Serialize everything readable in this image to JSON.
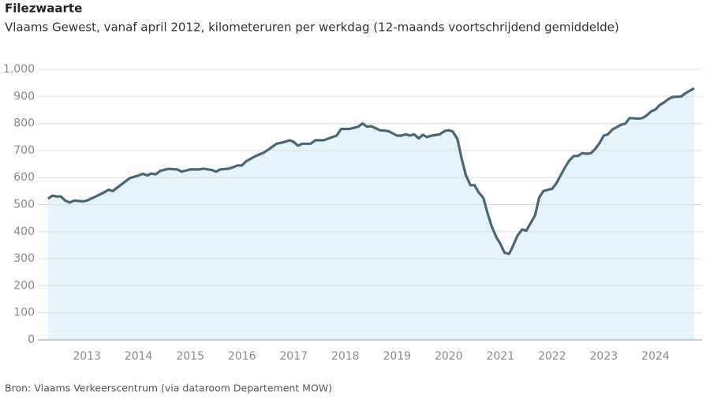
{
  "chart_data": {
    "type": "area",
    "title": "Filezwaarte",
    "subtitle": "Vlaams Gewest, vanaf april 2012, kilometeruren per werkdag (12-maands voortschrijdend gemiddelde)",
    "source": "Bron: Vlaams Verkeerscentrum (via dataroom Departement MOW)",
    "color": "#4b6672",
    "area_color": "#e5f3fb",
    "grid": true,
    "x": [
      2012.25,
      2012.33,
      2012.42,
      2012.5,
      2012.58,
      2012.67,
      2012.75,
      2012.92,
      2013.0,
      2013.17,
      2013.33,
      2013.42,
      2013.5,
      2013.67,
      2013.83,
      2014.0,
      2014.08,
      2014.17,
      2014.25,
      2014.33,
      2014.42,
      2014.58,
      2014.75,
      2014.83,
      2015.0,
      2015.17,
      2015.25,
      2015.42,
      2015.5,
      2015.58,
      2015.75,
      2015.92,
      2016.0,
      2016.08,
      2016.25,
      2016.42,
      2016.5,
      2016.67,
      2016.83,
      2016.92,
      2017.0,
      2017.08,
      2017.17,
      2017.33,
      2017.42,
      2017.58,
      2017.83,
      2017.92,
      2018.08,
      2018.25,
      2018.33,
      2018.42,
      2018.5,
      2018.67,
      2018.83,
      2019.0,
      2019.08,
      2019.17,
      2019.25,
      2019.33,
      2019.42,
      2019.5,
      2019.58,
      2019.67,
      2019.83,
      2019.92,
      2020.0,
      2020.08,
      2020.17,
      2020.25,
      2020.33,
      2020.42,
      2020.5,
      2020.58,
      2020.67,
      2020.75,
      2020.83,
      2020.92,
      2021.0,
      2021.08,
      2021.17,
      2021.25,
      2021.33,
      2021.42,
      2021.5,
      2021.58,
      2021.67,
      2021.75,
      2021.83,
      2021.92,
      2022.0,
      2022.08,
      2022.17,
      2022.25,
      2022.33,
      2022.42,
      2022.5,
      2022.58,
      2022.67,
      2022.75,
      2022.83,
      2022.92,
      2023.0,
      2023.08,
      2023.17,
      2023.33,
      2023.42,
      2023.5,
      2023.67,
      2023.75,
      2023.83,
      2023.92,
      2024.0,
      2024.08,
      2024.17,
      2024.25,
      2024.33,
      2024.5,
      2024.58,
      2024.67,
      2024.75
    ],
    "values": [
      522,
      533,
      530,
      530,
      515,
      508,
      515,
      512,
      515,
      530,
      545,
      555,
      550,
      575,
      598,
      608,
      614,
      608,
      615,
      612,
      625,
      632,
      630,
      622,
      630,
      630,
      633,
      628,
      622,
      630,
      633,
      645,
      645,
      660,
      678,
      692,
      702,
      725,
      732,
      738,
      732,
      718,
      725,
      725,
      738,
      738,
      755,
      780,
      780,
      788,
      800,
      788,
      790,
      775,
      772,
      755,
      755,
      760,
      755,
      760,
      745,
      758,
      750,
      755,
      760,
      772,
      775,
      770,
      742,
      670,
      610,
      572,
      572,
      545,
      525,
      470,
      420,
      380,
      355,
      322,
      318,
      350,
      385,
      408,
      404,
      430,
      460,
      525,
      550,
      555,
      558,
      578,
      610,
      638,
      662,
      680,
      680,
      690,
      688,
      690,
      705,
      728,
      755,
      760,
      778,
      795,
      800,
      820,
      818,
      820,
      830,
      845,
      852,
      868,
      878,
      890,
      898,
      900,
      912,
      922,
      930
    ],
    "xlim": [
      2012.25,
      2024.75
    ],
    "xticks": [
      2013,
      2014,
      2015,
      2016,
      2017,
      2018,
      2019,
      2020,
      2021,
      2022,
      2023,
      2024
    ],
    "ylim": [
      0,
      1000
    ],
    "yticks": [
      0,
      100,
      200,
      300,
      400,
      500,
      600,
      700,
      800,
      900,
      {
        "value": 1000,
        "label": "1.000"
      }
    ]
  }
}
